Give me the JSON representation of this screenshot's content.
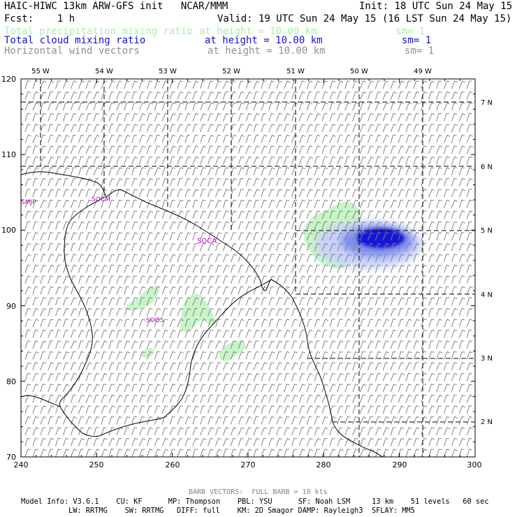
{
  "header": {
    "title": "HAIC-HIWC 13km ARW-GFS init   NCAR/MMM",
    "init": "Init: 18 UTC Sun 24 May 15",
    "fcst": "Fcst:    1 h",
    "valid": "Valid: 19 UTC Sun 24 May 15 (16 LST Sun 24 May 15)",
    "fields": [
      {
        "name": "Total precipitation mixing ratio",
        "height": "at height = 10.00 km",
        "sm": "sm= 1",
        "color": "#a8f0a8"
      },
      {
        "name": "Total cloud mixing ratio",
        "height": "at height = 10.00 km",
        "sm": "sm= 1",
        "color": "#1010d0"
      },
      {
        "name": "Horizontal wind vectors",
        "height": "at height = 10.00 km",
        "sm": "sm= 1",
        "color": "#909090"
      }
    ]
  },
  "map": {
    "x_ticks": [
      "240",
      "250",
      "260",
      "270",
      "280",
      "290",
      "300"
    ],
    "y_ticks": [
      "70",
      "80",
      "90",
      "100",
      "110",
      "120"
    ],
    "lon_labels": [
      "55 W",
      "54 W",
      "53 W",
      "52 W",
      "51 W",
      "50 W",
      "49 W"
    ],
    "lat_labels": [
      "7 N",
      "6 N",
      "5 N",
      "4 N",
      "3 N",
      "2 N"
    ],
    "stations": [
      "SMJP",
      "SOCM",
      "SOCA",
      "SOOS"
    ],
    "colors": {
      "precip": "#c8f5c8",
      "cloud_light": "#a8b8f8",
      "cloud_dark": "#1818d8",
      "barb": "#808080",
      "coast": "#000000",
      "station": "#c000c0"
    }
  },
  "footer": {
    "barb_note": "BARB VECTORS:  FULL BARB = 10 kts",
    "line1": "Model Info: V3.6.1    CU: KF      MP: Thompson    PBL: YSU      SF: Noah LSM     13 km    51 levels   60 sec",
    "line2": "LW: RRTMG    SW: RRTMG   DIFF: full    KM: 2D Smagor DAMP: Rayleigh3  SFLAY: MM5"
  }
}
